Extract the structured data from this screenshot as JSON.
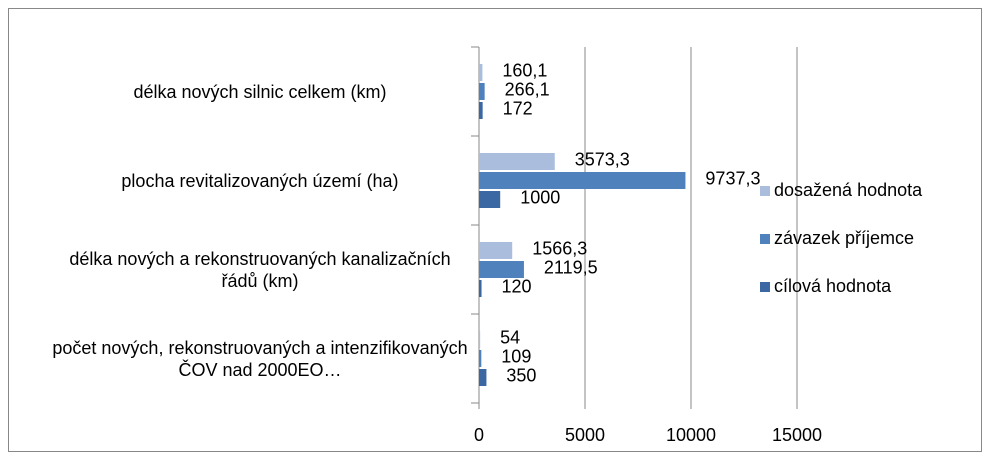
{
  "chart_data": {
    "type": "hbar",
    "categories": [
      "délka nových silnic celkem (km)",
      "plocha revitalizovaných území (ha)",
      "délka nových a rekonstruovaných kanalizačních řádů (km)",
      "počet nových, rekonstruovaných a intenzifikovaných ČOV nad 2000EO…"
    ],
    "series": [
      {
        "name": "dosažená hodnota",
        "color": "#aabddd",
        "values": [
          160.1,
          3573.3,
          1566.3,
          54
        ],
        "value_labels": [
          "160,1",
          "3573,3",
          "1566,3",
          "54"
        ]
      },
      {
        "name": "závazek příjemce",
        "color": "#4f81bd",
        "values": [
          266.1,
          9737.3,
          2119.5,
          109
        ],
        "value_labels": [
          "266,1",
          "9737,3",
          "2119,5",
          "109"
        ]
      },
      {
        "name": "cílová hodnota",
        "color": "#3b68a3",
        "values": [
          172,
          1000,
          120,
          350
        ],
        "value_labels": [
          "172",
          "1000",
          "120",
          "350"
        ]
      }
    ],
    "xlim": [
      0,
      15000
    ],
    "xticks": [
      0,
      5000,
      10000,
      15000
    ],
    "grid": true,
    "legend": "right"
  }
}
